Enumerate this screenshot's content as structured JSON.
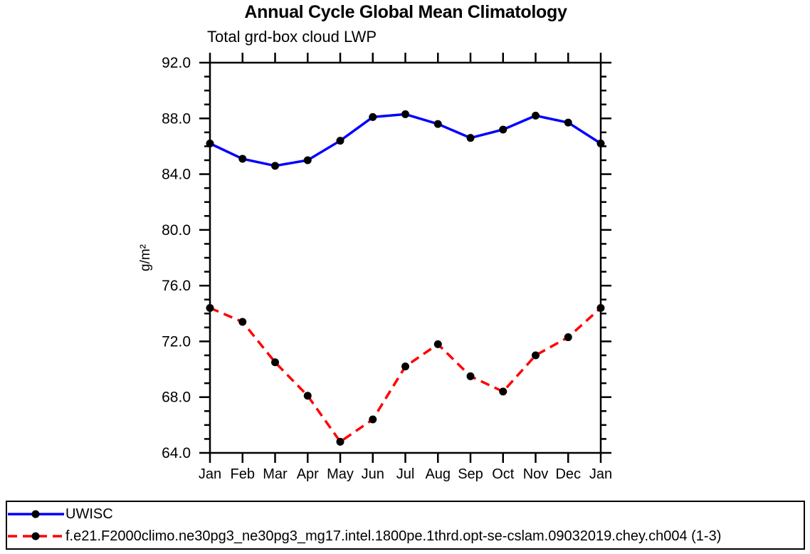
{
  "title": "Annual Cycle Global Mean Climatology",
  "subtitle": "Total grd-box cloud LWP",
  "ylabel": "g/m²",
  "chart_data": {
    "type": "line",
    "title": "Annual Cycle Global Mean Climatology",
    "subtitle": "Total grd-box cloud LWP",
    "xlabel": "",
    "ylabel": "g/m²",
    "categories": [
      "Jan",
      "Feb",
      "Mar",
      "Apr",
      "May",
      "Jun",
      "Jul",
      "Aug",
      "Sep",
      "Oct",
      "Nov",
      "Dec",
      "Jan"
    ],
    "ylim": [
      64.0,
      92.0
    ],
    "ytick_major_step": 4,
    "ytick_minor_step": 1,
    "ytick_labels": [
      "64.0",
      "68.0",
      "72.0",
      "76.0",
      "80.0",
      "84.0",
      "88.0",
      "92.0"
    ],
    "grid": false,
    "legend_position": "bottom-left-box",
    "axis_color": "#000000",
    "marker_color": "#000000",
    "series": [
      {
        "name": "UWISC",
        "color": "#0000ff",
        "style": "solid",
        "marker": "filled-circle",
        "values": [
          86.2,
          85.1,
          84.6,
          85.0,
          86.4,
          88.1,
          88.3,
          87.6,
          86.6,
          87.2,
          88.2,
          87.7,
          86.2
        ]
      },
      {
        "name": "f.e21.F2000climo.ne30pg3_ne30pg3_mg17.intel.1800pe.1thrd.opt-se-cslam.09032019.chey.ch004 (1-3)",
        "color": "#ff0000",
        "style": "dashed",
        "marker": "filled-circle",
        "values": [
          74.4,
          73.4,
          70.5,
          68.1,
          64.8,
          66.4,
          70.2,
          71.8,
          69.5,
          68.4,
          71.0,
          72.3,
          74.4
        ]
      }
    ]
  }
}
